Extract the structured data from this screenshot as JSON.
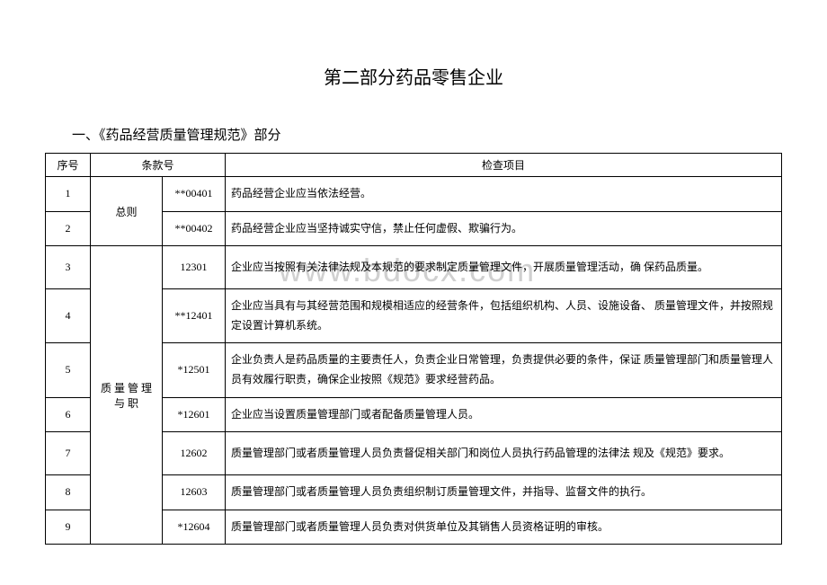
{
  "title": "第二部分药品零售企业",
  "subtitle": "一、《药品经营质量管理规范》部分",
  "watermark": "www.bdocx.com",
  "headers": {
    "seq": "序号",
    "clause": "条款号",
    "item": "检查项目"
  },
  "groups": {
    "general": "总则",
    "quality": "质 量 管 理 与 职"
  },
  "rows": [
    {
      "seq": "1",
      "clause": "**00401",
      "item": "药品经营企业应当依法经营。"
    },
    {
      "seq": "2",
      "clause": "**00402",
      "item": "药品经营企业应当坚持诚实守信，禁止任何虚假、欺骗行为。"
    },
    {
      "seq": "3",
      "clause": "12301",
      "item": "企业应当按照有关法律法规及本规范的要求制定质量管理文件，开展质量管理活动，确 保药品质量。"
    },
    {
      "seq": "4",
      "clause": "**12401",
      "item": "企业应当具有与其经营范围和规模相适应的经营条件，包括组织机构、人员、设施设备、 质量管理文件，并按照规定设置计算机系统。"
    },
    {
      "seq": "5",
      "clause": "*12501",
      "item": "企业负责人是药品质量的主要责任人，负责企业日常管理，负责提供必要的条件，保证 质量管理部门和质量管理人员有效履行职责，确保企业按照《规范》要求经营药品。"
    },
    {
      "seq": "6",
      "clause": "*12601",
      "item": "企业应当设置质量管理部门或者配备质量管理人员。"
    },
    {
      "seq": "7",
      "clause": "12602",
      "item": "质量管理部门或者质量管理人员负责督促相关部门和岗位人员执行药品管理的法律法 规及《规范》要求。"
    },
    {
      "seq": "8",
      "clause": "12603",
      "item": "质量管理部门或者质量管理人员负责组织制订质量管理文件，并指导、监督文件的执行。"
    },
    {
      "seq": "9",
      "clause": "*12604",
      "item": "质量管理部门或者质量管理人员负责对供货单位及其销售人员资格证明的审核。"
    }
  ]
}
